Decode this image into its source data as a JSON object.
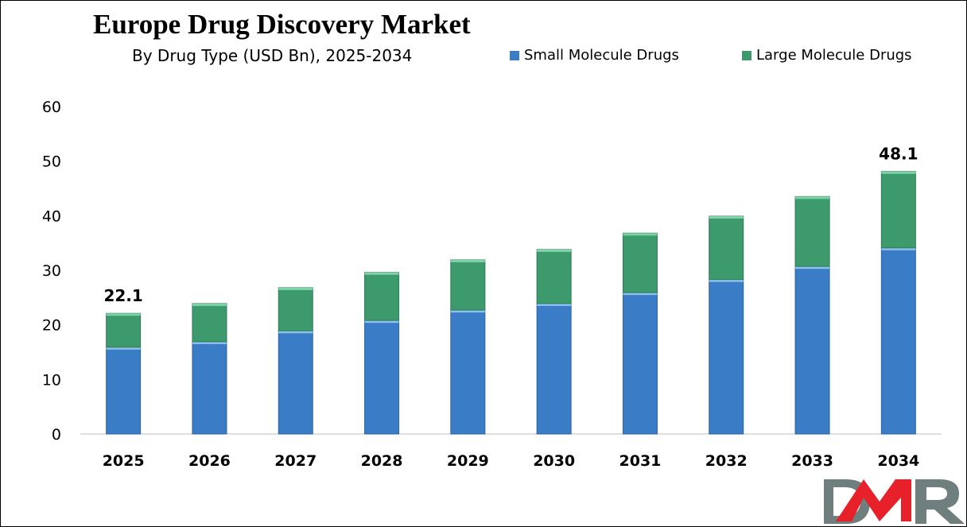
{
  "chart_data": {
    "type": "bar",
    "stacked": true,
    "title": "Europe Drug Discovery Market",
    "subtitle": "By Drug Type (USD Bn), 2025-2034",
    "categories": [
      "2025",
      "2026",
      "2027",
      "2028",
      "2029",
      "2030",
      "2031",
      "2032",
      "2033",
      "2034"
    ],
    "series": [
      {
        "name": "Small Molecule Drugs",
        "color": "#3a7cc6",
        "values": [
          15.9,
          16.9,
          18.9,
          20.8,
          22.7,
          23.9,
          25.9,
          28.3,
          30.7,
          34.1
        ]
      },
      {
        "name": "Large Molecule Drugs",
        "color": "#3d9a6c",
        "values": [
          6.2,
          7.0,
          7.9,
          8.8,
          9.2,
          9.9,
          10.9,
          11.6,
          12.8,
          14.0
        ]
      }
    ],
    "data_labels": [
      {
        "category": "2025",
        "text": "22.1"
      },
      {
        "category": "2034",
        "text": "48.1"
      }
    ],
    "ylim": [
      0,
      60
    ],
    "yticks": [
      "0",
      "10",
      "20",
      "30",
      "40",
      "50",
      "60"
    ],
    "grid": false,
    "legend_position": "top-right",
    "xlabel": "",
    "ylabel": ""
  },
  "logo": {
    "text": "DMR"
  }
}
